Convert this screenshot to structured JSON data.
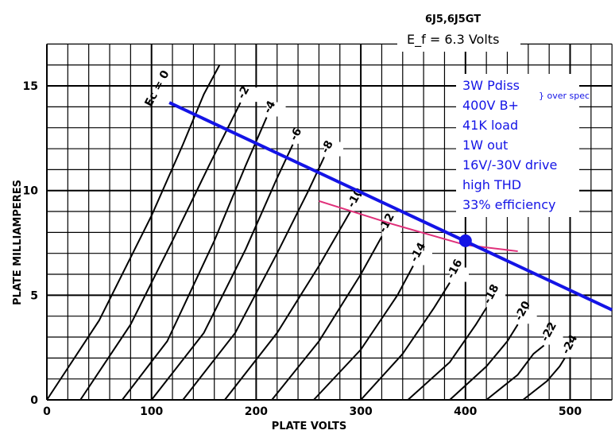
{
  "chart_data": {
    "type": "line",
    "title": "6J5,6J5GT",
    "subtitle": "E_f = 6.3 Volts",
    "xlabel": "PLATE VOLTS",
    "ylabel": "PLATE MILLIAMPERES",
    "xlim": [
      0,
      540
    ],
    "ylim": [
      0,
      17
    ],
    "x_ticks": [
      "0",
      "100",
      "200",
      "300",
      "400",
      "500"
    ],
    "y_ticks": [
      "0",
      "5",
      "10",
      "15"
    ],
    "grid": true,
    "curve_family_label": "Ec = 0",
    "series": [
      {
        "name": "0",
        "x": [
          0,
          50,
          100,
          130,
          150,
          165
        ],
        "y": [
          0,
          3.8,
          8.8,
          12.2,
          14.6,
          16.0
        ]
      },
      {
        "name": "-2",
        "x": [
          32,
          80,
          120,
          155,
          185
        ],
        "y": [
          0,
          3.6,
          7.6,
          11.2,
          14.2
        ]
      },
      {
        "name": "-4",
        "x": [
          72,
          115,
          160,
          190,
          210
        ],
        "y": [
          0,
          2.8,
          7.6,
          11.2,
          13.5
        ]
      },
      {
        "name": "-6",
        "x": [
          100,
          150,
          190,
          220,
          235
        ],
        "y": [
          0,
          3.2,
          7.2,
          10.6,
          12.2
        ]
      },
      {
        "name": "-8",
        "x": [
          130,
          180,
          220,
          250,
          265
        ],
        "y": [
          0,
          3.2,
          7.0,
          10.0,
          11.6
        ]
      },
      {
        "name": "-10",
        "x": [
          170,
          220,
          260,
          290
        ],
        "y": [
          0,
          3.2,
          6.4,
          9.0
        ]
      },
      {
        "name": "-12",
        "x": [
          215,
          260,
          300,
          320
        ],
        "y": [
          0,
          2.8,
          6.0,
          7.8
        ]
      },
      {
        "name": "-14",
        "x": [
          255,
          300,
          335,
          350
        ],
        "y": [
          0,
          2.4,
          5.0,
          6.4
        ]
      },
      {
        "name": "-16",
        "x": [
          300,
          340,
          370,
          385
        ],
        "y": [
          0,
          2.2,
          4.4,
          5.6
        ]
      },
      {
        "name": "-18",
        "x": [
          345,
          385,
          410,
          420
        ],
        "y": [
          0,
          1.8,
          3.6,
          4.4
        ]
      },
      {
        "name": "-20",
        "x": [
          385,
          420,
          440,
          450
        ],
        "y": [
          0,
          1.6,
          2.8,
          3.6
        ]
      },
      {
        "name": "-22",
        "x": [
          420,
          450,
          465,
          475
        ],
        "y": [
          0,
          1.2,
          2.2,
          2.6
        ]
      },
      {
        "name": "-24",
        "x": [
          455,
          478,
          490,
          495
        ],
        "y": [
          0,
          0.9,
          1.6,
          2.0
        ]
      }
    ],
    "load_line": {
      "x": [
        117,
        540
      ],
      "y": [
        14.2,
        4.3
      ],
      "color": "#1414e6"
    },
    "operating_point": {
      "x": 400,
      "y": 7.6,
      "color": "#1414e6"
    },
    "red_trace": {
      "x": [
        260,
        330,
        400,
        450
      ],
      "y": [
        9.5,
        8.4,
        7.4,
        7.1
      ],
      "color": "#e0307a"
    }
  },
  "annotations": {
    "notes": [
      "3W Pdiss",
      "400V B+",
      "41K load",
      "1W out",
      "16V/-30V drive",
      "high THD",
      "33% efficiency"
    ],
    "over_spec": "} over spec"
  },
  "colors": {
    "accent": "#1414e6",
    "grid": "#000000"
  }
}
